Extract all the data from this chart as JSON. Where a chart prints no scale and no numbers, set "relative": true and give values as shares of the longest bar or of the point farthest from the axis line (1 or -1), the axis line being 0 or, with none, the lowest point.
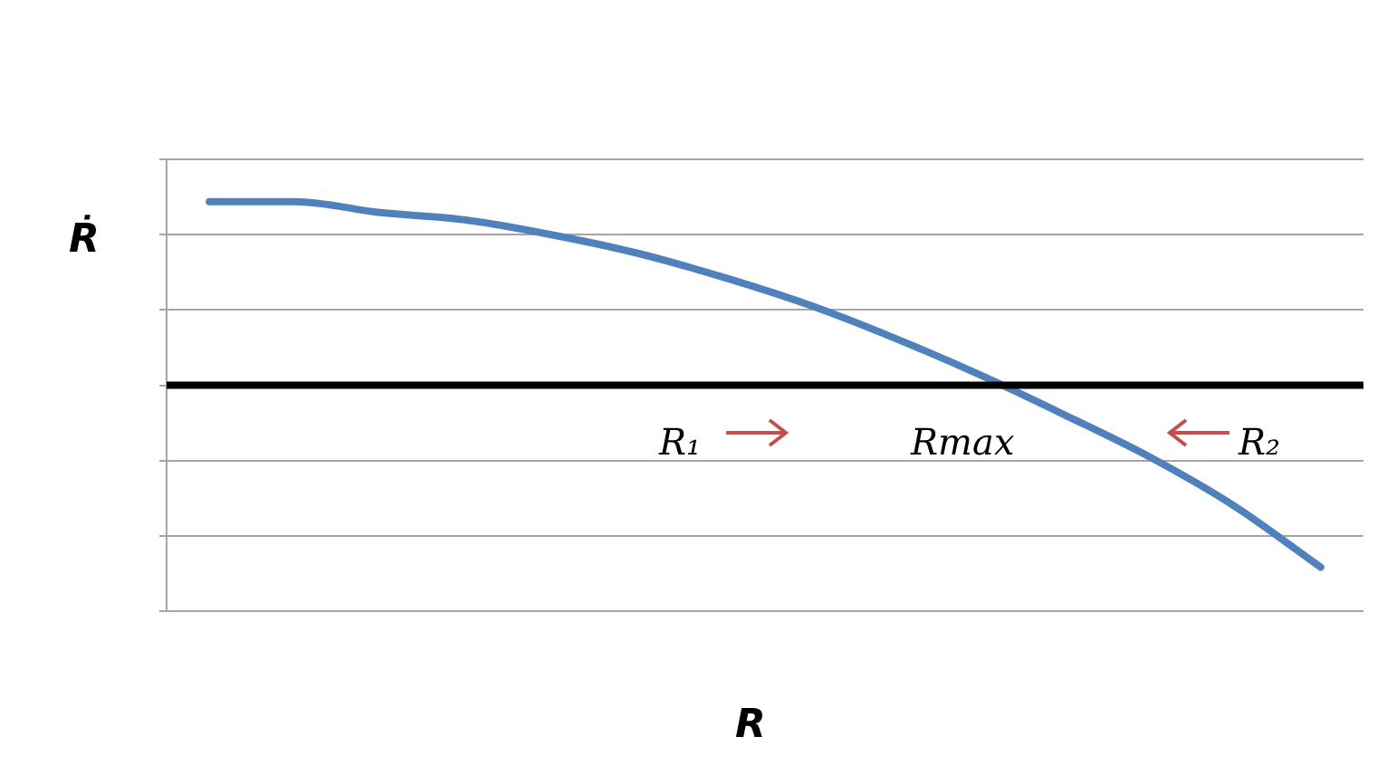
{
  "chart_data": {
    "type": "line",
    "relative": true,
    "xlabel": "R",
    "ylabel": "Ṙ",
    "categories": [
      null,
      null,
      null,
      null,
      null,
      null,
      null,
      null,
      null,
      null,
      null,
      null,
      null,
      null
    ],
    "series": [
      {
        "color": "#4f81bd",
        "values": [
          1.0,
          1.0,
          0.94,
          0.9,
          0.82,
          0.72,
          0.59,
          0.44,
          0.26,
          0.06,
          -0.16,
          -0.39,
          -0.66,
          -0.99
        ]
      }
    ],
    "annotations": [
      "R₁",
      "Rmax",
      "R₂"
    ],
    "grid": "y",
    "legend": false,
    "marker": "none",
    "line_style": "solid"
  }
}
